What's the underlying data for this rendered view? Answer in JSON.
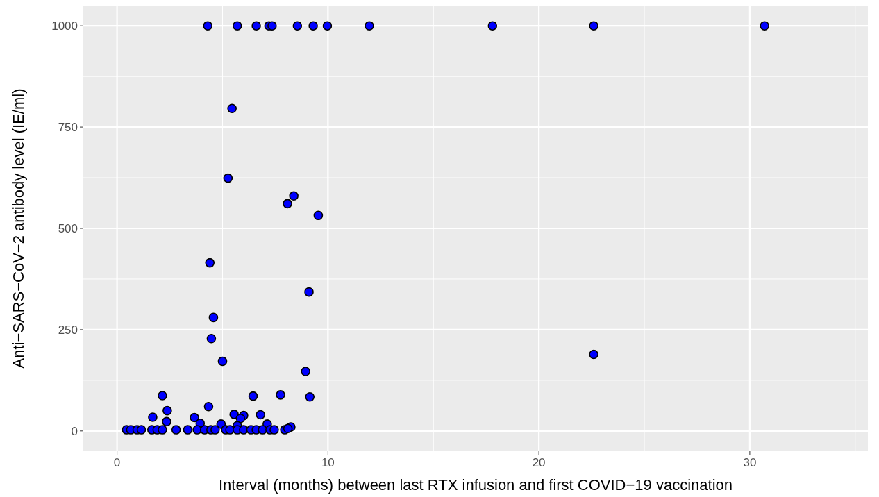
{
  "chart_data": {
    "type": "scatter",
    "xlabel": "Interval (months) between last RTX infusion and first COVID−19 vaccination",
    "ylabel": "Anti−SARS−CoV−2 antibody level (IE/ml)",
    "xlim": [
      -1.6,
      35.6
    ],
    "ylim": [
      -50,
      1050
    ],
    "xticks": [
      0,
      10,
      20,
      30
    ],
    "yticks": [
      0,
      250,
      500,
      750,
      1000
    ],
    "grid": true,
    "marker": "circle",
    "series": [
      {
        "color": "#0000ff",
        "x": [
          4.3,
          5.7,
          6.6,
          7.2,
          7.35,
          8.55,
          9.3,
          9.97,
          11.96,
          17.8,
          22.6,
          30.7,
          5.45,
          5.26,
          8.38,
          8.08,
          9.54,
          4.4,
          9.1,
          4.57,
          4.47,
          5.0,
          8.94,
          22.6,
          2.15,
          6.45,
          7.75,
          9.14,
          4.34,
          2.38,
          1.69,
          2.35,
          3.67,
          5.55,
          6.0,
          5.85,
          6.8,
          3.94,
          4.93,
          7.12,
          5.7,
          8.24,
          0.45,
          0.65,
          0.95,
          1.15,
          1.65,
          1.9,
          2.15,
          2.8,
          3.35,
          3.8,
          4.15,
          4.45,
          4.65,
          5.15,
          5.35,
          5.7,
          6.0,
          6.35,
          6.6,
          6.9,
          7.25,
          7.45,
          7.95,
          8.1
        ],
        "values": [
          1000,
          1000,
          1000,
          1000,
          1000,
          1000,
          1000,
          1000,
          1000,
          1000,
          1000,
          1000,
          796,
          624,
          580,
          561,
          532,
          415,
          343,
          280,
          228,
          172,
          147,
          189,
          87,
          86,
          89,
          84,
          60,
          50,
          34,
          23,
          33,
          41,
          38,
          31,
          40,
          19,
          17,
          17,
          13,
          10,
          3,
          3,
          3,
          3,
          3,
          3,
          3,
          3,
          3,
          3,
          3,
          3,
          3,
          3,
          3,
          3,
          3,
          3,
          3,
          3,
          3,
          3,
          3,
          6
        ]
      }
    ]
  }
}
